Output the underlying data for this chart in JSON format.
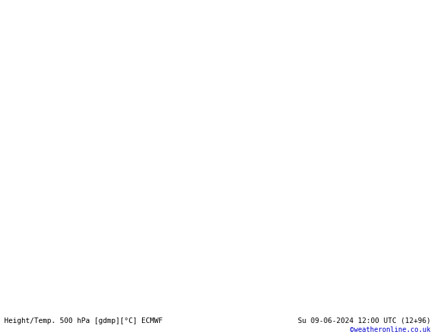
{
  "title_left": "Height/Temp. 500 hPa [gdmp][°C] ECMWF",
  "title_right": "Su 09-06-2024 12:00 UTC (12+96)",
  "credit": "©weatheronline.co.uk",
  "bg_color": "#e0e0e0",
  "land_color": "#c8eaaa",
  "border_color": "#999999",
  "sea_color": "#e0e0e0",
  "height_color": "#000000",
  "temp_m25_color": "#00bbaa",
  "temp_m20_color": "#99cc00",
  "temp_m15_color": "#ff9900",
  "figsize": [
    6.34,
    4.9
  ],
  "dpi": 100,
  "lon_min": -25,
  "lon_max": 25,
  "lat_min": 40,
  "lat_max": 65
}
